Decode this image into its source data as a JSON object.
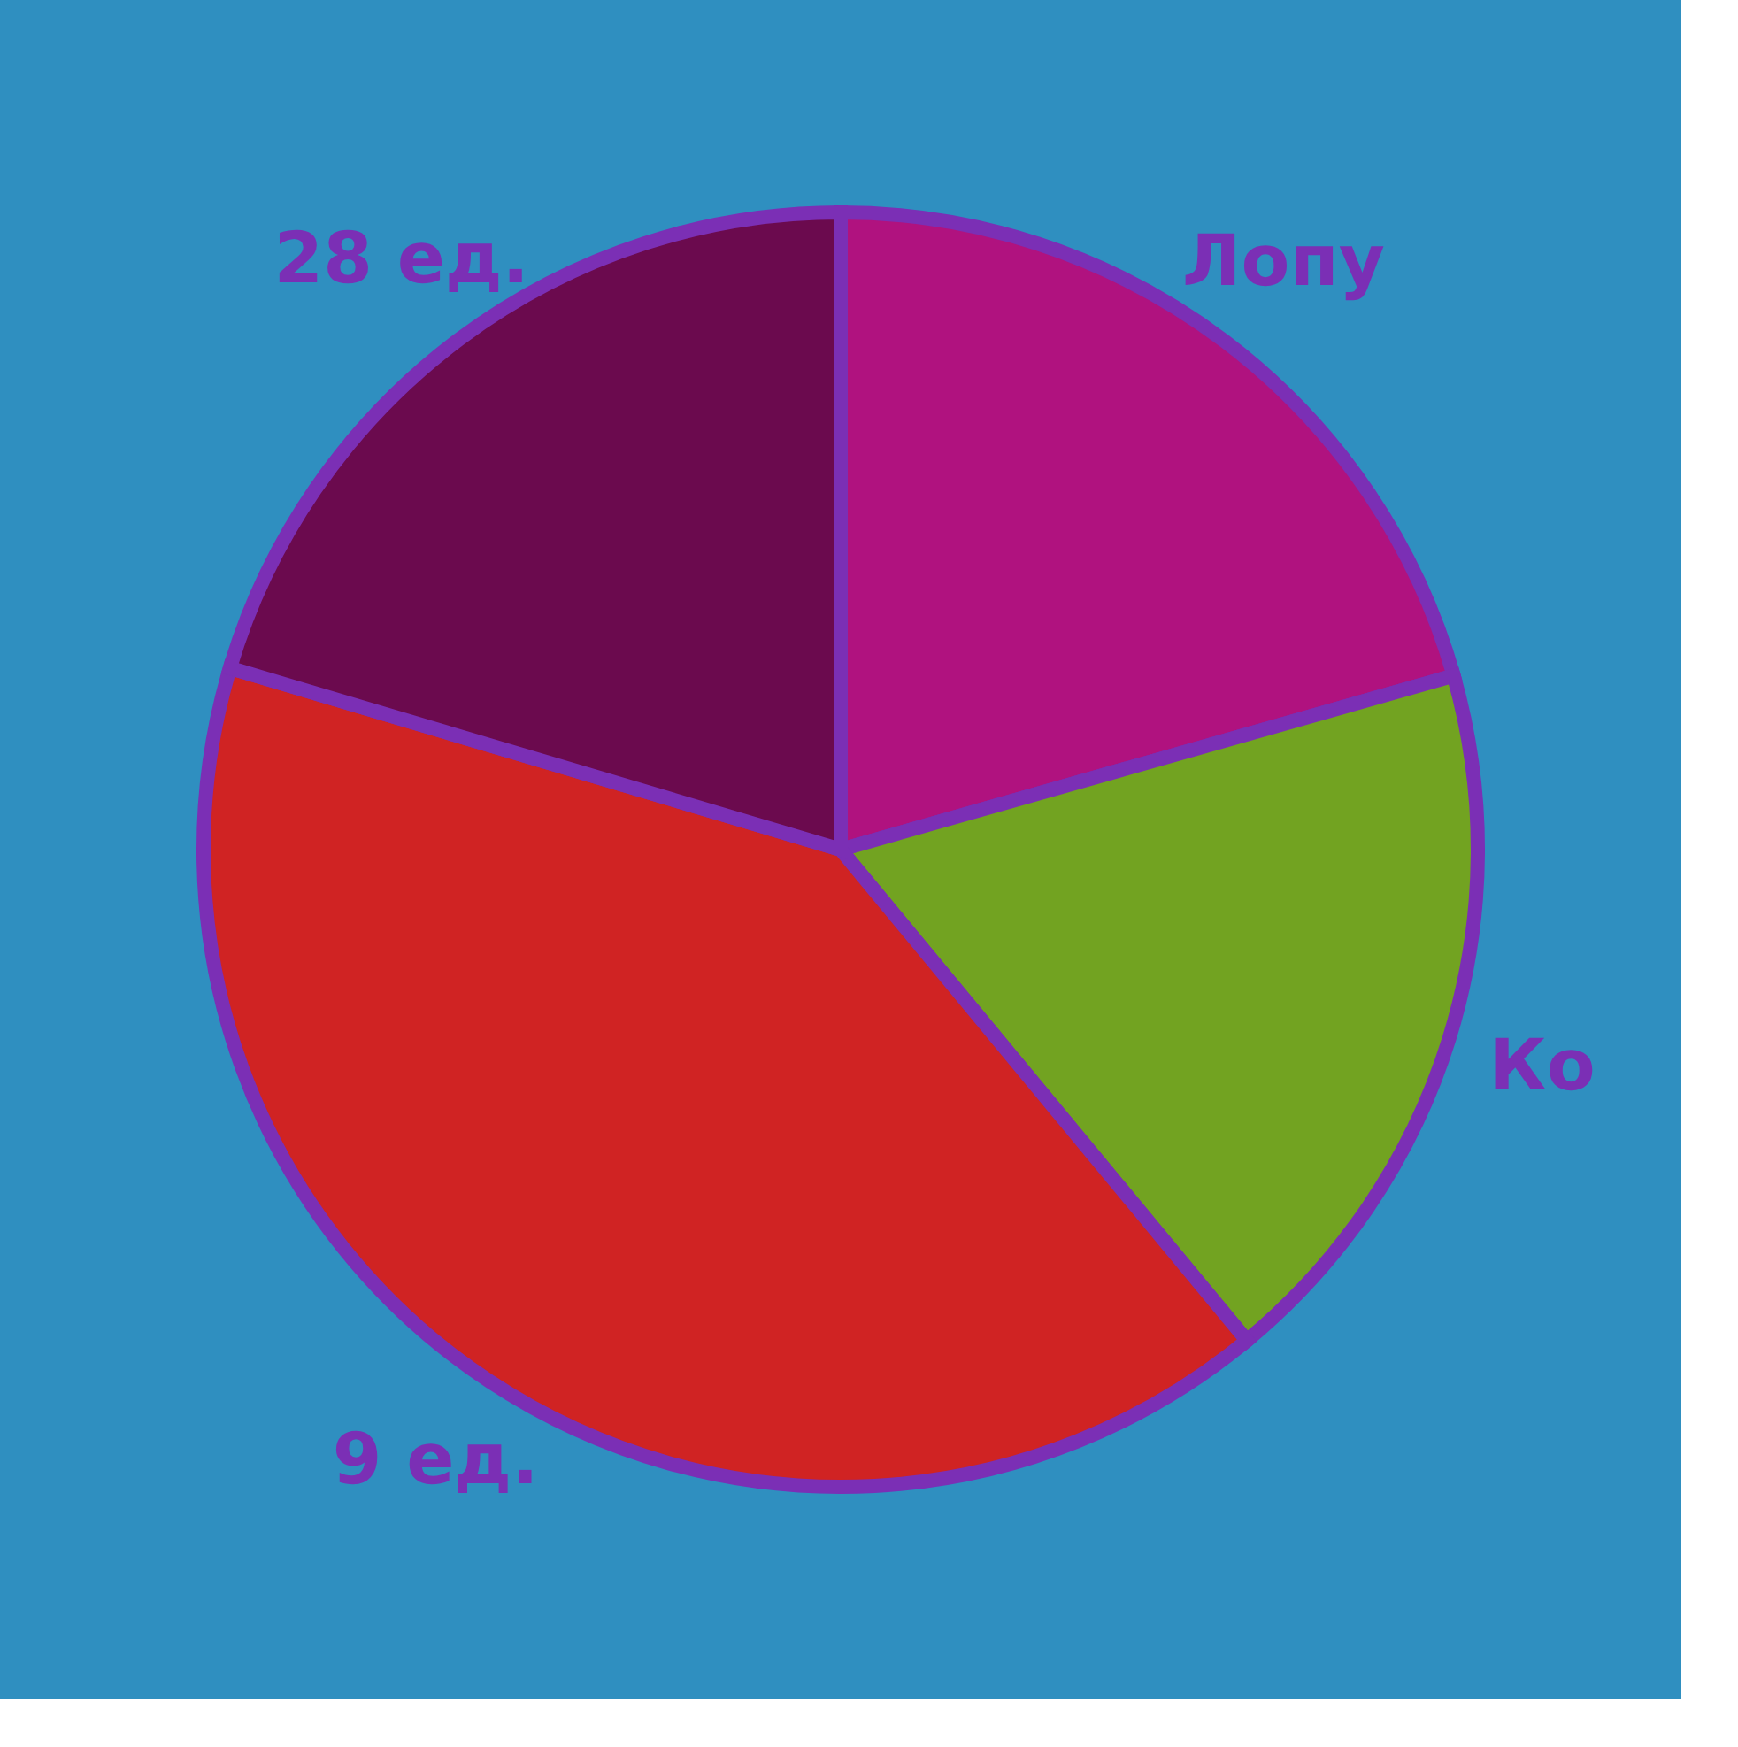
{
  "chart_data": {
    "type": "pie",
    "categories": [
      "Лопу",
      "Ко",
      null,
      null
    ],
    "values": [
      20.6,
      18.4,
      40.6,
      20.4
    ],
    "colors": [
      "#b0127f",
      "#72a321",
      "#d02323",
      "#6b0a4e"
    ],
    "annotations": [
      "9 ед.",
      "28 ед."
    ],
    "legend": false
  }
}
